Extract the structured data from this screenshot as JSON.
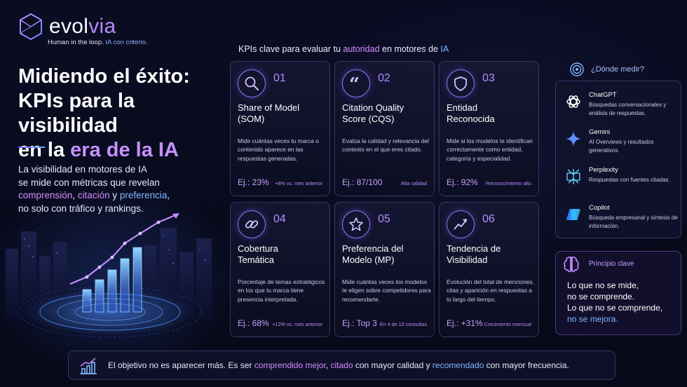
{
  "brand": {
    "logo_text_a": "evol",
    "logo_text_b": "via",
    "tagline_a": "Human in the loop.",
    "tagline_b": "IA con criterio."
  },
  "hero": {
    "title_line1": "Midiendo el éxito:",
    "title_line2": "KPIs para la visibilidad",
    "title_line3_a": "en la ",
    "title_line3_b": "era de la IA",
    "intro_line1": "La visibilidad en motores de IA",
    "intro_line2": "se mide con métricas que revelan",
    "intro_w1": "comprensión",
    "intro_sep1": ", ",
    "intro_w2": "citación",
    "intro_sep2": " y ",
    "intro_w3": "preferencia",
    "intro_sep3": ",",
    "intro_line4": "no solo con tráfico y rankings."
  },
  "section": {
    "head_a": "KPIs clave para evaluar tu ",
    "head_b": "autoridad",
    "head_c": " en motores de ",
    "head_d": "IA"
  },
  "kpis": [
    {
      "num": "01",
      "title": "Share of Model\n(SOM)",
      "desc": "Mide cuántas veces tu marca o contenido aparece en las respuestas generadas.",
      "example": "Ej.: 23%",
      "note": "+8% vs. mes anterior",
      "icon": "search-icon"
    },
    {
      "num": "02",
      "title": "Citation Quality\nScore (CQS)",
      "desc": "Evalúa la calidad y relevancia del contexto en el que eres citado.",
      "example": "Ej.: 87/100",
      "note": "Alta calidad",
      "icon": "quote-icon"
    },
    {
      "num": "03",
      "title": "Entidad\nReconocida",
      "desc": "Mide si los modelos te identifican correctamente como entidad, categoría y especialidad.",
      "example": "Ej.: 92%",
      "note": "Reconocimiento alto",
      "icon": "shield-icon"
    },
    {
      "num": "04",
      "title": "Cobertura\nTemática",
      "desc": "Porcentaje de temas estratégicos en los que tu marca tiene presencia interpretada.",
      "example": "Ej.: 68%",
      "note": "+12% vs. mes anterior",
      "icon": "link-icon"
    },
    {
      "num": "05",
      "title": "Preferencia del\nModelo (MP)",
      "desc": "Mide cuántas veces los modelos te eligen sobre competidores para recomendarte.",
      "example": "Ej.: Top 3",
      "note": "En 4 de 10 consultas",
      "icon": "star-icon"
    },
    {
      "num": "06",
      "title": "Tendencia de\nVisibilidad",
      "desc": "Evolución del total de menciones, citas y aparición en respuestas a lo largo del tiempo.",
      "example": "Ej.: +31%",
      "note": "Crecimiento mensual",
      "icon": "trend-icon"
    }
  ],
  "where": {
    "heading": "¿Dónde medir?",
    "tools": [
      {
        "name": "ChatGPT",
        "desc": "Búsquedas conversacionales y análisis de respuestas."
      },
      {
        "name": "Gemini",
        "desc": "AI Overviews y resultados generativos."
      },
      {
        "name": "Perplexity",
        "desc": "Respuestas con fuentes citadas."
      },
      {
        "name": "Copilot",
        "desc": "Búsqueda empresarial y síntesis de información."
      }
    ]
  },
  "principle": {
    "heading": "Principio clave",
    "line1": "Lo que no se mide,",
    "line2": "no se comprende.",
    "line3": "Lo que no se comprende,",
    "line4": "no se mejora."
  },
  "footer": {
    "t1": "El objetivo no es aparecer más. Es ser ",
    "t2": "comprendido mejor",
    "t3": ", ",
    "t4": "citado",
    "t5": " con mayor calidad y ",
    "t6": "recomendado",
    "t7": " con mayor frecuencia."
  }
}
